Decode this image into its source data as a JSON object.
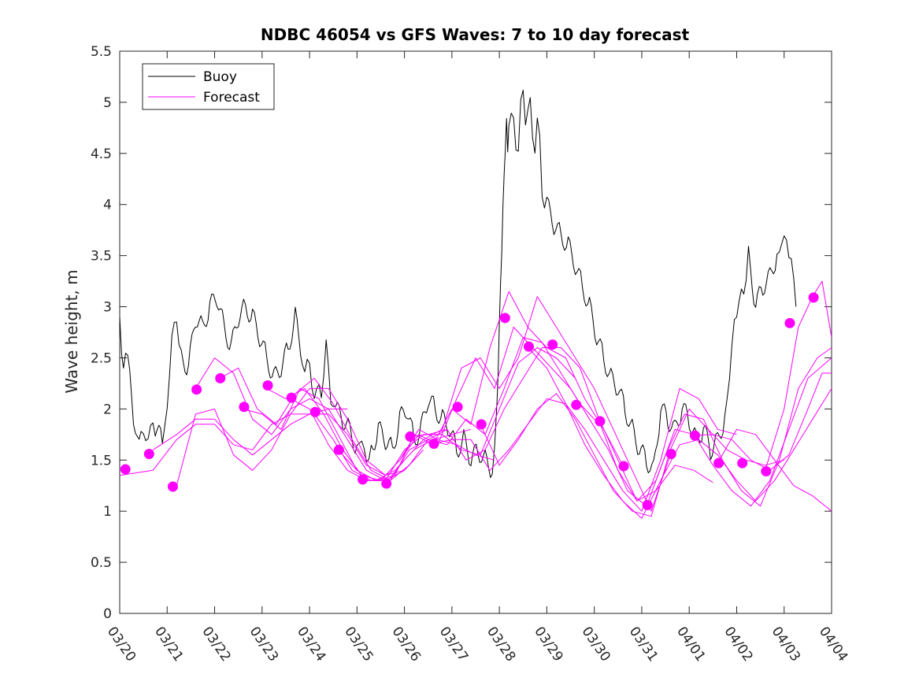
{
  "chart_data": {
    "type": "line",
    "title": "NDBC 46054 vs GFS Waves: 7 to 10 day forecast",
    "xlabel": "",
    "ylabel": "Wave height, m",
    "xlim": [
      0,
      15
    ],
    "ylim": [
      0,
      5.5
    ],
    "x_unit": "days since 03/20 00:00",
    "xticks": [
      0,
      1,
      2,
      3,
      4,
      5,
      6,
      7,
      8,
      9,
      10,
      11,
      12,
      13,
      14,
      15
    ],
    "xtick_labels": [
      "03/20",
      "03/21",
      "03/22",
      "03/23",
      "03/24",
      "03/25",
      "03/26",
      "03/27",
      "03/28",
      "03/29",
      "03/30",
      "03/31",
      "04/01",
      "04/02",
      "04/03",
      "04/04"
    ],
    "yticks": [
      0,
      0.5,
      1,
      1.5,
      2,
      2.5,
      3,
      3.5,
      4,
      4.5,
      5,
      5.5
    ],
    "ytick_labels": [
      "0",
      "0.5",
      "1",
      "1.5",
      "2",
      "2.5",
      "3",
      "3.5",
      "4",
      "4.5",
      "5",
      "5.5"
    ],
    "legend": {
      "position": "top-left",
      "entries": [
        {
          "label": "Buoy",
          "color": "#000000"
        },
        {
          "label": "Forecast",
          "color": "#ff00ff"
        }
      ]
    },
    "colors": {
      "buoy": "#000000",
      "forecast": "#ff00ff"
    },
    "series": [
      {
        "name": "Buoy",
        "color": "#000000",
        "style": "jagged",
        "x": [
          0,
          0.08,
          0.17,
          0.25,
          0.33,
          0.45,
          0.55,
          0.65,
          0.75,
          0.9,
          1.0,
          1.1,
          1.2,
          1.3,
          1.45,
          1.6,
          1.75,
          1.9,
          2.05,
          2.2,
          2.35,
          2.5,
          2.65,
          2.8,
          2.95,
          3.1,
          3.25,
          3.4,
          3.55,
          3.7,
          3.85,
          3.95,
          4.05,
          4.15,
          4.25,
          4.35,
          4.45,
          4.55,
          4.7,
          4.85,
          5.0,
          5.1,
          5.2,
          5.3,
          5.45,
          5.6,
          5.75,
          5.9,
          6.05,
          6.2,
          6.35,
          6.5,
          6.65,
          6.8,
          6.95,
          7.1,
          7.25,
          7.4,
          7.55,
          7.7,
          7.85,
          7.95,
          8.0,
          8.05,
          8.1,
          8.15,
          8.2,
          8.3,
          8.4,
          8.5,
          8.6,
          8.7,
          8.8,
          8.9,
          9.0,
          9.15,
          9.3,
          9.45,
          9.6,
          9.75,
          9.9,
          10.05,
          10.2,
          10.35,
          10.5,
          10.65,
          10.8,
          10.95,
          11.1,
          11.25,
          11.4,
          11.55,
          11.7,
          11.85,
          12.0,
          12.15,
          12.3,
          12.45,
          12.6,
          12.75,
          12.85,
          12.95,
          13.05,
          13.15,
          13.25,
          13.4,
          13.55,
          13.7,
          13.85,
          13.95,
          14.05,
          14.15,
          14.25
        ],
        "y": [
          2.9,
          2.3,
          2.6,
          2.2,
          1.7,
          1.8,
          1.7,
          1.8,
          1.8,
          1.7,
          2.0,
          2.7,
          2.9,
          2.5,
          2.4,
          2.9,
          2.8,
          3.0,
          3.1,
          2.8,
          2.6,
          2.9,
          3.0,
          2.9,
          2.7,
          2.5,
          2.3,
          2.4,
          2.6,
          2.9,
          2.5,
          2.4,
          2.3,
          2.1,
          2.2,
          2.6,
          2.1,
          2.0,
          1.9,
          1.8,
          1.6,
          1.7,
          1.5,
          1.6,
          1.8,
          1.7,
          1.6,
          1.9,
          2.0,
          1.7,
          1.8,
          2.1,
          2.0,
          1.9,
          1.8,
          1.6,
          1.7,
          1.5,
          1.6,
          1.5,
          1.4,
          2.0,
          2.9,
          3.6,
          4.2,
          4.6,
          4.8,
          4.9,
          4.4,
          5.3,
          4.7,
          4.9,
          4.6,
          4.3,
          4.0,
          3.8,
          3.7,
          3.6,
          3.4,
          3.2,
          3.0,
          2.7,
          2.5,
          2.3,
          2.2,
          2.0,
          1.8,
          1.6,
          1.5,
          1.4,
          2.0,
          1.9,
          1.8,
          2.0,
          1.9,
          1.7,
          1.8,
          1.6,
          1.7,
          1.9,
          2.3,
          2.9,
          3.0,
          3.2,
          3.5,
          3.0,
          3.2,
          3.3,
          3.5,
          3.6,
          3.7,
          3.4,
          3.0
        ]
      },
      {
        "name": "Forecast run 1",
        "color": "#ff00ff",
        "x": [
          0,
          0.7,
          1.2,
          1.6,
          2.0,
          2.4,
          2.8,
          3.2,
          3.6,
          4.0,
          4.4,
          4.8
        ],
        "y": [
          1.35,
          1.4,
          1.7,
          1.85,
          1.85,
          1.65,
          1.6,
          1.85,
          1.95,
          1.95,
          2.0,
          2.0
        ]
      },
      {
        "name": "Forecast run 2",
        "color": "#ff00ff",
        "x": [
          0.7,
          1.2,
          1.6,
          2.0,
          2.4,
          2.8,
          3.2,
          3.6,
          4.0,
          4.4,
          4.8,
          5.2,
          5.6
        ],
        "y": [
          1.6,
          1.75,
          1.9,
          1.9,
          1.7,
          1.55,
          1.7,
          1.85,
          1.95,
          1.95,
          1.75,
          1.45,
          1.35
        ]
      },
      {
        "name": "Forecast run 3",
        "color": "#ff00ff",
        "x": [
          1.2,
          1.6,
          2.0,
          2.4,
          2.8,
          3.2,
          3.6,
          4.0,
          4.4,
          4.8,
          5.2,
          5.6,
          6.0
        ],
        "y": [
          1.25,
          1.95,
          2.0,
          1.55,
          1.4,
          1.6,
          1.95,
          2.2,
          2.2,
          1.9,
          1.5,
          1.35,
          1.4
        ]
      },
      {
        "name": "Forecast run 4",
        "color": "#ff00ff",
        "x": [
          1.6,
          2.0,
          2.4,
          2.8,
          3.2,
          3.6,
          4.0,
          4.4,
          4.8,
          5.2,
          5.6,
          6.0,
          6.4
        ],
        "y": [
          2.2,
          2.5,
          2.35,
          1.9,
          1.75,
          2.0,
          2.1,
          2.0,
          1.7,
          1.4,
          1.3,
          1.4,
          1.6
        ]
      },
      {
        "name": "Forecast run 5",
        "color": "#ff00ff",
        "x": [
          2.1,
          2.5,
          2.9,
          3.3,
          3.7,
          4.1,
          4.5,
          4.9,
          5.3,
          5.7,
          6.1,
          6.5,
          6.9
        ],
        "y": [
          2.3,
          2.4,
          2.0,
          1.85,
          2.15,
          2.3,
          2.05,
          1.7,
          1.4,
          1.3,
          1.45,
          1.7,
          1.8
        ]
      },
      {
        "name": "Forecast run 6",
        "color": "#ff00ff",
        "x": [
          2.6,
          3.0,
          3.4,
          3.8,
          4.2,
          4.6,
          5.0,
          5.4,
          5.8,
          6.2,
          6.6,
          7.0,
          7.4
        ],
        "y": [
          2.0,
          1.95,
          1.8,
          2.2,
          2.1,
          1.75,
          1.4,
          1.3,
          1.4,
          1.6,
          1.7,
          1.75,
          1.8
        ]
      },
      {
        "name": "Forecast run 7",
        "color": "#ff00ff",
        "x": [
          3.1,
          3.5,
          3.9,
          4.3,
          4.7,
          5.1,
          5.5,
          5.9,
          6.3,
          6.7,
          7.1,
          7.5,
          7.9
        ],
        "y": [
          2.2,
          2.1,
          2.2,
          1.95,
          1.6,
          1.35,
          1.3,
          1.5,
          1.8,
          1.7,
          1.65,
          1.55,
          1.5
        ]
      },
      {
        "name": "Forecast run 8",
        "color": "#ff00ff",
        "x": [
          3.6,
          4.0,
          4.4,
          4.8,
          5.2,
          5.6,
          6.0,
          6.4,
          6.8,
          7.2,
          7.6,
          8.0,
          8.4,
          8.8,
          9.2,
          9.6
        ],
        "y": [
          2.1,
          2.0,
          1.65,
          1.4,
          1.3,
          1.3,
          1.6,
          1.75,
          1.75,
          1.6,
          1.55,
          2.0,
          2.45,
          2.6,
          2.5,
          2.3
        ]
      },
      {
        "name": "Forecast run 9",
        "color": "#ff00ff",
        "x": [
          4.1,
          4.5,
          4.9,
          5.3,
          5.7,
          6.1,
          6.5,
          6.9,
          7.3,
          7.7,
          8.1,
          8.5,
          8.9,
          9.3,
          9.7,
          10.1
        ],
        "y": [
          1.95,
          1.7,
          1.4,
          1.3,
          1.3,
          1.6,
          1.7,
          1.65,
          1.9,
          1.75,
          2.2,
          2.7,
          2.65,
          2.35,
          2.05,
          1.85
        ]
      },
      {
        "name": "Forecast run 10",
        "color": "#ff00ff",
        "x": [
          4.6,
          5.0,
          5.4,
          5.8,
          6.2,
          6.6,
          7.0,
          7.4,
          7.8,
          8.2,
          8.6,
          9.0,
          9.4,
          9.8,
          10.2,
          10.6
        ],
        "y": [
          1.6,
          1.4,
          1.3,
          1.35,
          1.75,
          1.65,
          2.0,
          1.85,
          2.6,
          3.15,
          2.8,
          2.6,
          2.5,
          2.1,
          1.8,
          1.45
        ]
      },
      {
        "name": "Forecast run 11",
        "color": "#ff00ff",
        "x": [
          5.1,
          5.5,
          5.9,
          6.3,
          6.7,
          7.1,
          7.5,
          7.9,
          8.3,
          8.7,
          9.1,
          9.5,
          9.9,
          10.3,
          10.7,
          11.1
        ],
        "y": [
          1.3,
          1.3,
          1.5,
          1.75,
          1.65,
          2.1,
          2.5,
          2.2,
          2.8,
          2.6,
          2.4,
          2.2,
          1.9,
          1.6,
          1.2,
          1.05
        ]
      },
      {
        "name": "Forecast run 12",
        "color": "#ff00ff",
        "x": [
          5.6,
          6.0,
          6.4,
          6.8,
          7.2,
          7.6,
          8.0,
          8.4,
          8.8,
          9.2,
          9.6,
          10.0,
          10.4,
          10.8,
          11.2,
          11.6
        ],
        "y": [
          1.27,
          1.5,
          1.7,
          1.8,
          2.4,
          2.5,
          2.2,
          2.5,
          3.1,
          2.8,
          2.5,
          2.2,
          1.8,
          1.4,
          1.0,
          1.55
        ]
      },
      {
        "name": "Forecast run 13",
        "color": "#ff00ff",
        "x": [
          6.1,
          6.5,
          6.9,
          7.3,
          7.7,
          8.1,
          8.5,
          8.9,
          9.3,
          9.7,
          10.1,
          10.5,
          10.9,
          11.3,
          11.7,
          12.1,
          12.5
        ],
        "y": [
          1.73,
          1.75,
          1.8,
          1.5,
          1.6,
          2.0,
          2.3,
          2.6,
          2.6,
          2.4,
          1.9,
          1.5,
          1.1,
          1.2,
          1.45,
          1.4,
          1.28
        ]
      },
      {
        "name": "Forecast run 14",
        "color": "#ff00ff",
        "x": [
          6.6,
          7.0,
          7.4,
          7.8,
          8.2,
          8.6,
          9.0,
          9.4,
          9.8,
          10.2,
          10.6,
          11.0,
          11.4,
          11.8,
          12.2,
          12.6,
          13.0
        ],
        "y": [
          1.66,
          1.7,
          1.7,
          1.4,
          1.6,
          1.85,
          2.1,
          2.05,
          1.8,
          1.5,
          1.2,
          1.0,
          1.5,
          2.2,
          2.1,
          1.8,
          1.75
        ]
      },
      {
        "name": "Forecast run 15",
        "color": "#ff00ff",
        "x": [
          7.6,
          8.0,
          8.4,
          8.8,
          9.2,
          9.6,
          10.0,
          10.4,
          10.8,
          11.2,
          11.6,
          12.0,
          12.4,
          12.8,
          13.2,
          13.6,
          14.0
        ],
        "y": [
          1.85,
          1.45,
          1.7,
          2.0,
          2.15,
          1.9,
          1.55,
          1.2,
          1.0,
          0.95,
          1.6,
          2.0,
          1.8,
          1.6,
          1.5,
          1.45,
          1.5
        ]
      },
      {
        "name": "Forecast run 16",
        "color": "#ff00ff",
        "x": [
          8.6,
          9.0,
          9.4,
          9.8,
          10.2,
          10.6,
          11.0,
          11.4,
          11.8,
          12.2,
          12.6,
          13.0,
          13.4,
          13.8,
          14.2,
          14.6,
          15.0
        ],
        "y": [
          2.6,
          2.4,
          2.05,
          1.65,
          1.35,
          1.1,
          0.93,
          1.3,
          1.65,
          1.7,
          1.55,
          1.3,
          1.1,
          1.3,
          1.6,
          1.9,
          2.2
        ]
      },
      {
        "name": "Forecast run 17",
        "color": "#ff00ff",
        "x": [
          10.1,
          10.5,
          10.9,
          11.3,
          11.7,
          12.1,
          12.5,
          12.9,
          13.3,
          13.7,
          14.1,
          14.5,
          15.0
        ],
        "y": [
          1.88,
          1.4,
          1.1,
          1.3,
          1.8,
          1.75,
          1.45,
          1.2,
          1.05,
          1.3,
          1.8,
          2.3,
          2.5
        ]
      },
      {
        "name": "Forecast run 18",
        "color": "#ff00ff",
        "x": [
          11.1,
          11.5,
          11.9,
          12.3,
          12.7,
          13.1,
          13.5,
          13.9,
          14.3,
          14.7,
          15.0
        ],
        "y": [
          1.05,
          1.55,
          1.95,
          1.9,
          1.5,
          1.2,
          1.05,
          1.5,
          2.2,
          2.5,
          2.6
        ]
      },
      {
        "name": "Forecast run 19",
        "color": "#ff00ff",
        "x": [
          12.1,
          12.5,
          12.9,
          13.3,
          13.7,
          14.1,
          14.5,
          14.8,
          15.0
        ],
        "y": [
          1.74,
          1.75,
          1.7,
          1.5,
          1.4,
          1.55,
          2.0,
          2.35,
          2.35
        ]
      },
      {
        "name": "Forecast run 20",
        "color": "#ff00ff",
        "x": [
          12.6,
          13.0,
          13.4,
          13.8,
          14.2,
          14.6,
          15.0
        ],
        "y": [
          1.47,
          1.8,
          1.75,
          1.5,
          1.25,
          1.15,
          1.0
        ]
      },
      {
        "name": "Forecast run 21",
        "color": "#ff00ff",
        "x": [
          13.6,
          14.0,
          14.3,
          14.6,
          14.8,
          15.0
        ],
        "y": [
          1.4,
          2.0,
          2.8,
          3.1,
          3.25,
          2.7
        ]
      }
    ],
    "markers": {
      "name": "Forecast points",
      "color": "#ff00ff",
      "x": [
        0.12,
        0.62,
        1.12,
        1.62,
        2.12,
        2.62,
        3.12,
        3.62,
        4.12,
        4.62,
        5.12,
        5.62,
        6.12,
        6.62,
        7.12,
        7.62,
        8.12,
        8.62,
        9.12,
        9.62,
        10.12,
        10.62,
        11.12,
        11.62,
        12.12,
        12.62,
        13.12,
        13.62,
        14.12,
        14.62
      ],
      "y": [
        1.41,
        1.56,
        1.24,
        2.19,
        2.3,
        2.02,
        2.23,
        2.11,
        1.97,
        1.6,
        1.31,
        1.27,
        1.73,
        1.66,
        2.02,
        1.85,
        2.89,
        2.61,
        2.63,
        2.04,
        1.88,
        1.44,
        1.06,
        1.56,
        1.74,
        1.47,
        1.47,
        1.39,
        2.84,
        3.09
      ]
    }
  }
}
